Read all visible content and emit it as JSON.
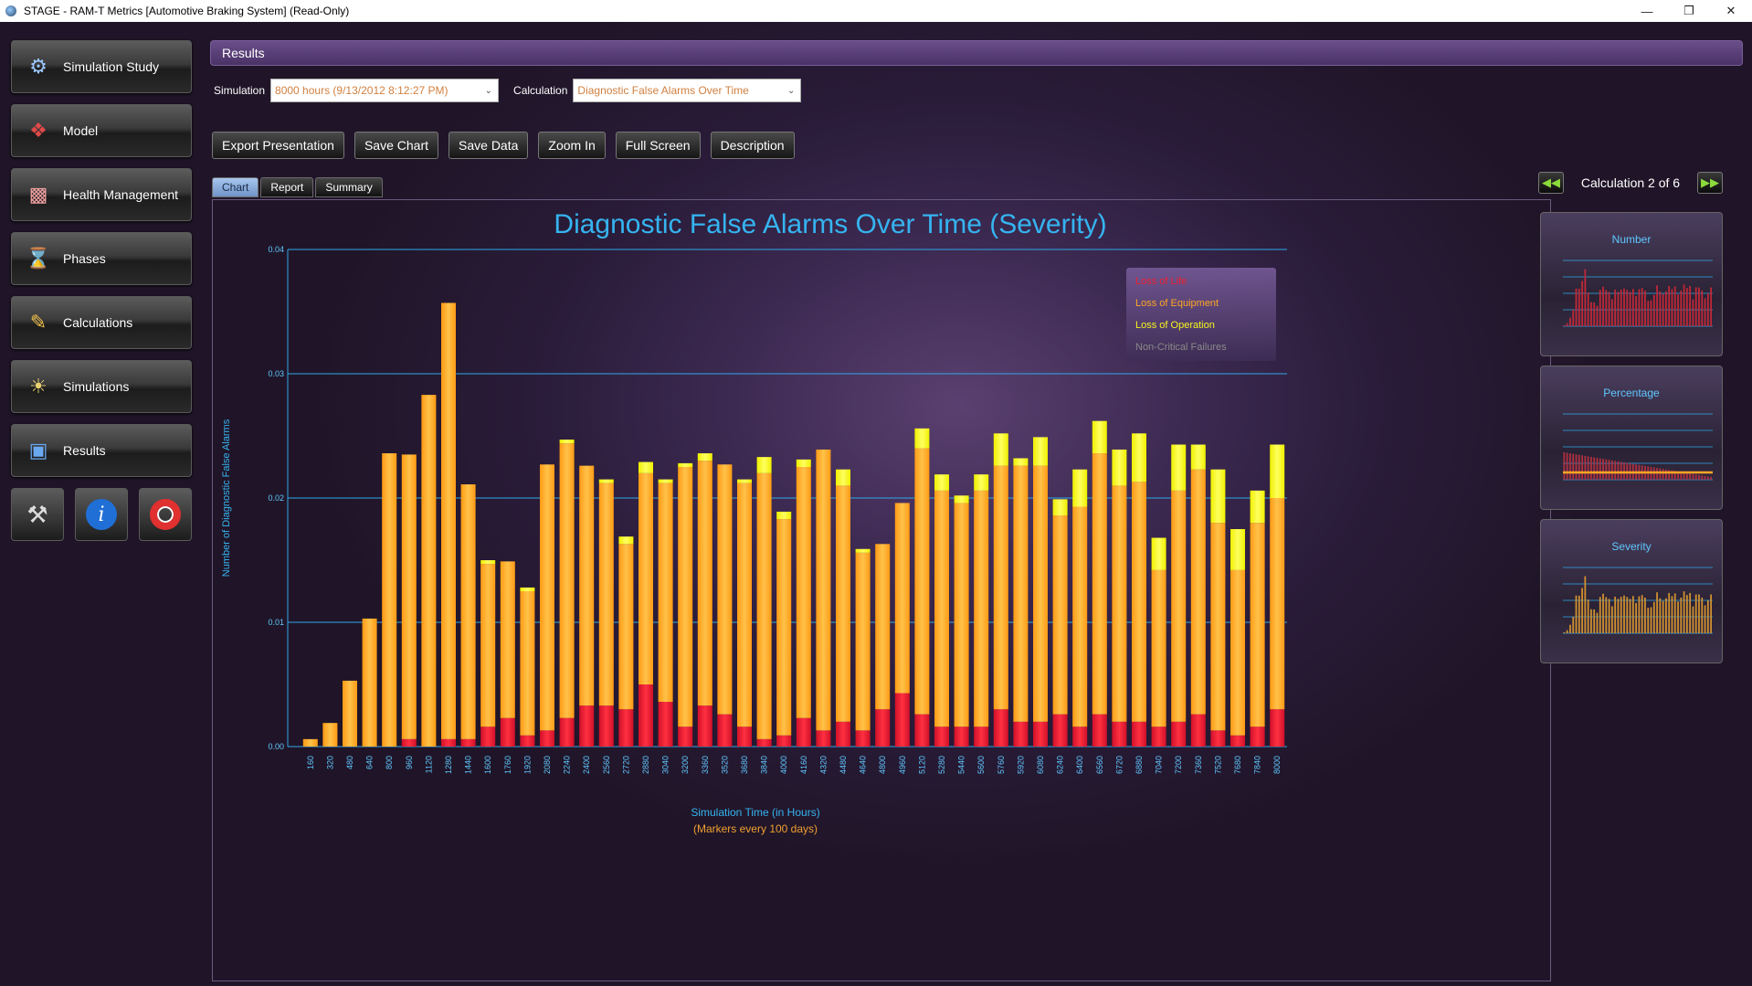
{
  "window": {
    "title": "STAGE - RAM-T Metrics [Automotive Braking System] (Read-Only)"
  },
  "sidebar": {
    "items": [
      {
        "label": "Simulation Study",
        "icon": "simulation-study-icon"
      },
      {
        "label": "Model",
        "icon": "model-icon"
      },
      {
        "label": "Health Management",
        "icon": "health-management-icon"
      },
      {
        "label": "Phases",
        "icon": "hourglass-icon"
      },
      {
        "label": "Calculations",
        "icon": "pencil-icon"
      },
      {
        "label": "Simulations",
        "icon": "simulations-icon"
      },
      {
        "label": "Results",
        "icon": "results-icon"
      }
    ],
    "tools": [
      "tools-icon",
      "info-icon",
      "help-lifebuoy-icon"
    ]
  },
  "header": {
    "title": "Results"
  },
  "selectors": {
    "simulation_label": "Simulation",
    "simulation_value": "8000 hours (9/13/2012 8:12:27 PM)",
    "calculation_label": "Calculation",
    "calculation_value": "Diagnostic False Alarms Over Time"
  },
  "actions": [
    "Export Presentation",
    "Save Chart",
    "Save Data",
    "Zoom In",
    "Full Screen",
    "Description"
  ],
  "tabs": [
    "Chart",
    "Report",
    "Summary"
  ],
  "active_tab": "Chart",
  "calc_nav": {
    "label": "Calculation 2 of 6"
  },
  "thumbnails": [
    "Number",
    "Percentage",
    "Severity"
  ],
  "colors": {
    "accent": "#35b4f0",
    "loss_of_life": "#f02030",
    "loss_of_equipment": "#ffa726",
    "loss_of_operation": "#f5f520",
    "non_critical": "#8a8a8a"
  },
  "chart_data": {
    "type": "bar",
    "stacked": true,
    "title": "Diagnostic False Alarms Over Time (Severity)",
    "xlabel": "Simulation Time (in Hours)",
    "xlabel_note": "(Markers every 100 days)",
    "ylabel": "Number of Diagnostic False Alarms",
    "ylim": [
      0,
      0.04
    ],
    "yticks": [
      "0.00",
      "0.01",
      "0.02",
      "0.03",
      "0.04"
    ],
    "grid": true,
    "legend_position": "top-right",
    "categories": [
      "160",
      "320",
      "480",
      "640",
      "800",
      "960",
      "1120",
      "1280",
      "1440",
      "1600",
      "1760",
      "1920",
      "2080",
      "2240",
      "2400",
      "2560",
      "2720",
      "2880",
      "3040",
      "3200",
      "3360",
      "3520",
      "3680",
      "3840",
      "4000",
      "4160",
      "4320",
      "4480",
      "4640",
      "4800",
      "4960",
      "5120",
      "5280",
      "5440",
      "5600",
      "5760",
      "5920",
      "6080",
      "6240",
      "6400",
      "6560",
      "6720",
      "6880",
      "7040",
      "7200",
      "7360",
      "7520",
      "7680",
      "7840",
      "8000"
    ],
    "series": [
      {
        "name": "Loss of Life",
        "color": "#f02030",
        "values": [
          0,
          0,
          0,
          0,
          0,
          0.0006,
          0,
          0.0006,
          0.0006,
          0.0016,
          0.0023,
          0.0009,
          0.0013,
          0.0023,
          0.0033,
          0.0033,
          0.003,
          0.005,
          0.0036,
          0.0016,
          0.0033,
          0.0026,
          0.0016,
          0.0006,
          0.0009,
          0.0023,
          0.0013,
          0.002,
          0.0013,
          0.003,
          0.0043,
          0.0026,
          0.0016,
          0.0016,
          0.0016,
          0.003,
          0.002,
          0.002,
          0.0026,
          0.0016,
          0.0026,
          0.002,
          0.002,
          0.0016,
          0.002,
          0.0026,
          0.0013,
          0.0009,
          0.0016,
          0.003
        ]
      },
      {
        "name": "Loss of Equipment",
        "color": "#ffa726",
        "values": [
          0.0006,
          0.0019,
          0.0053,
          0.0103,
          0.0236,
          0.0229,
          0.0283,
          0.0351,
          0.0205,
          0.0131,
          0.0126,
          0.0116,
          0.0214,
          0.0221,
          0.0193,
          0.0179,
          0.0133,
          0.017,
          0.0176,
          0.0209,
          0.0197,
          0.0201,
          0.0196,
          0.0214,
          0.0174,
          0.0202,
          0.0226,
          0.019,
          0.0143,
          0.0133,
          0.0153,
          0.0214,
          0.019,
          0.018,
          0.019,
          0.0196,
          0.0206,
          0.0206,
          0.016,
          0.0177,
          0.021,
          0.019,
          0.0193,
          0.0126,
          0.0186,
          0.0197,
          0.0167,
          0.0133,
          0.0164,
          0.017
        ]
      },
      {
        "name": "Loss of Operation",
        "color": "#f5f520",
        "values": [
          0,
          0,
          0,
          0,
          0,
          0,
          0,
          0,
          0,
          0.0003,
          0,
          0.0003,
          0,
          0.0003,
          0,
          0.0003,
          0.0006,
          0.0009,
          0.0003,
          0.0003,
          0.0006,
          0,
          0.0003,
          0.0013,
          0.0006,
          0.0006,
          0,
          0.0013,
          0.0003,
          0,
          0,
          0.0016,
          0.0013,
          0.0006,
          0.0013,
          0.0026,
          0.0006,
          0.0023,
          0.0013,
          0.003,
          0.0026,
          0.0029,
          0.0039,
          0.0026,
          0.0037,
          0.002,
          0.0043,
          0.0033,
          0.0026,
          0.0043
        ]
      },
      {
        "name": "Non-Critical Failures",
        "color": "#8a8a8a",
        "values": [
          0,
          0,
          0,
          0,
          0,
          0,
          0,
          0,
          0,
          0,
          0,
          0,
          0,
          0,
          0,
          0,
          0,
          0,
          0,
          0,
          0,
          0,
          0,
          0,
          0,
          0,
          0,
          0,
          0,
          0,
          0,
          0,
          0,
          0,
          0,
          0,
          0,
          0,
          0,
          0,
          0,
          0,
          0,
          0,
          0,
          0,
          0,
          0,
          0,
          0
        ]
      }
    ]
  }
}
